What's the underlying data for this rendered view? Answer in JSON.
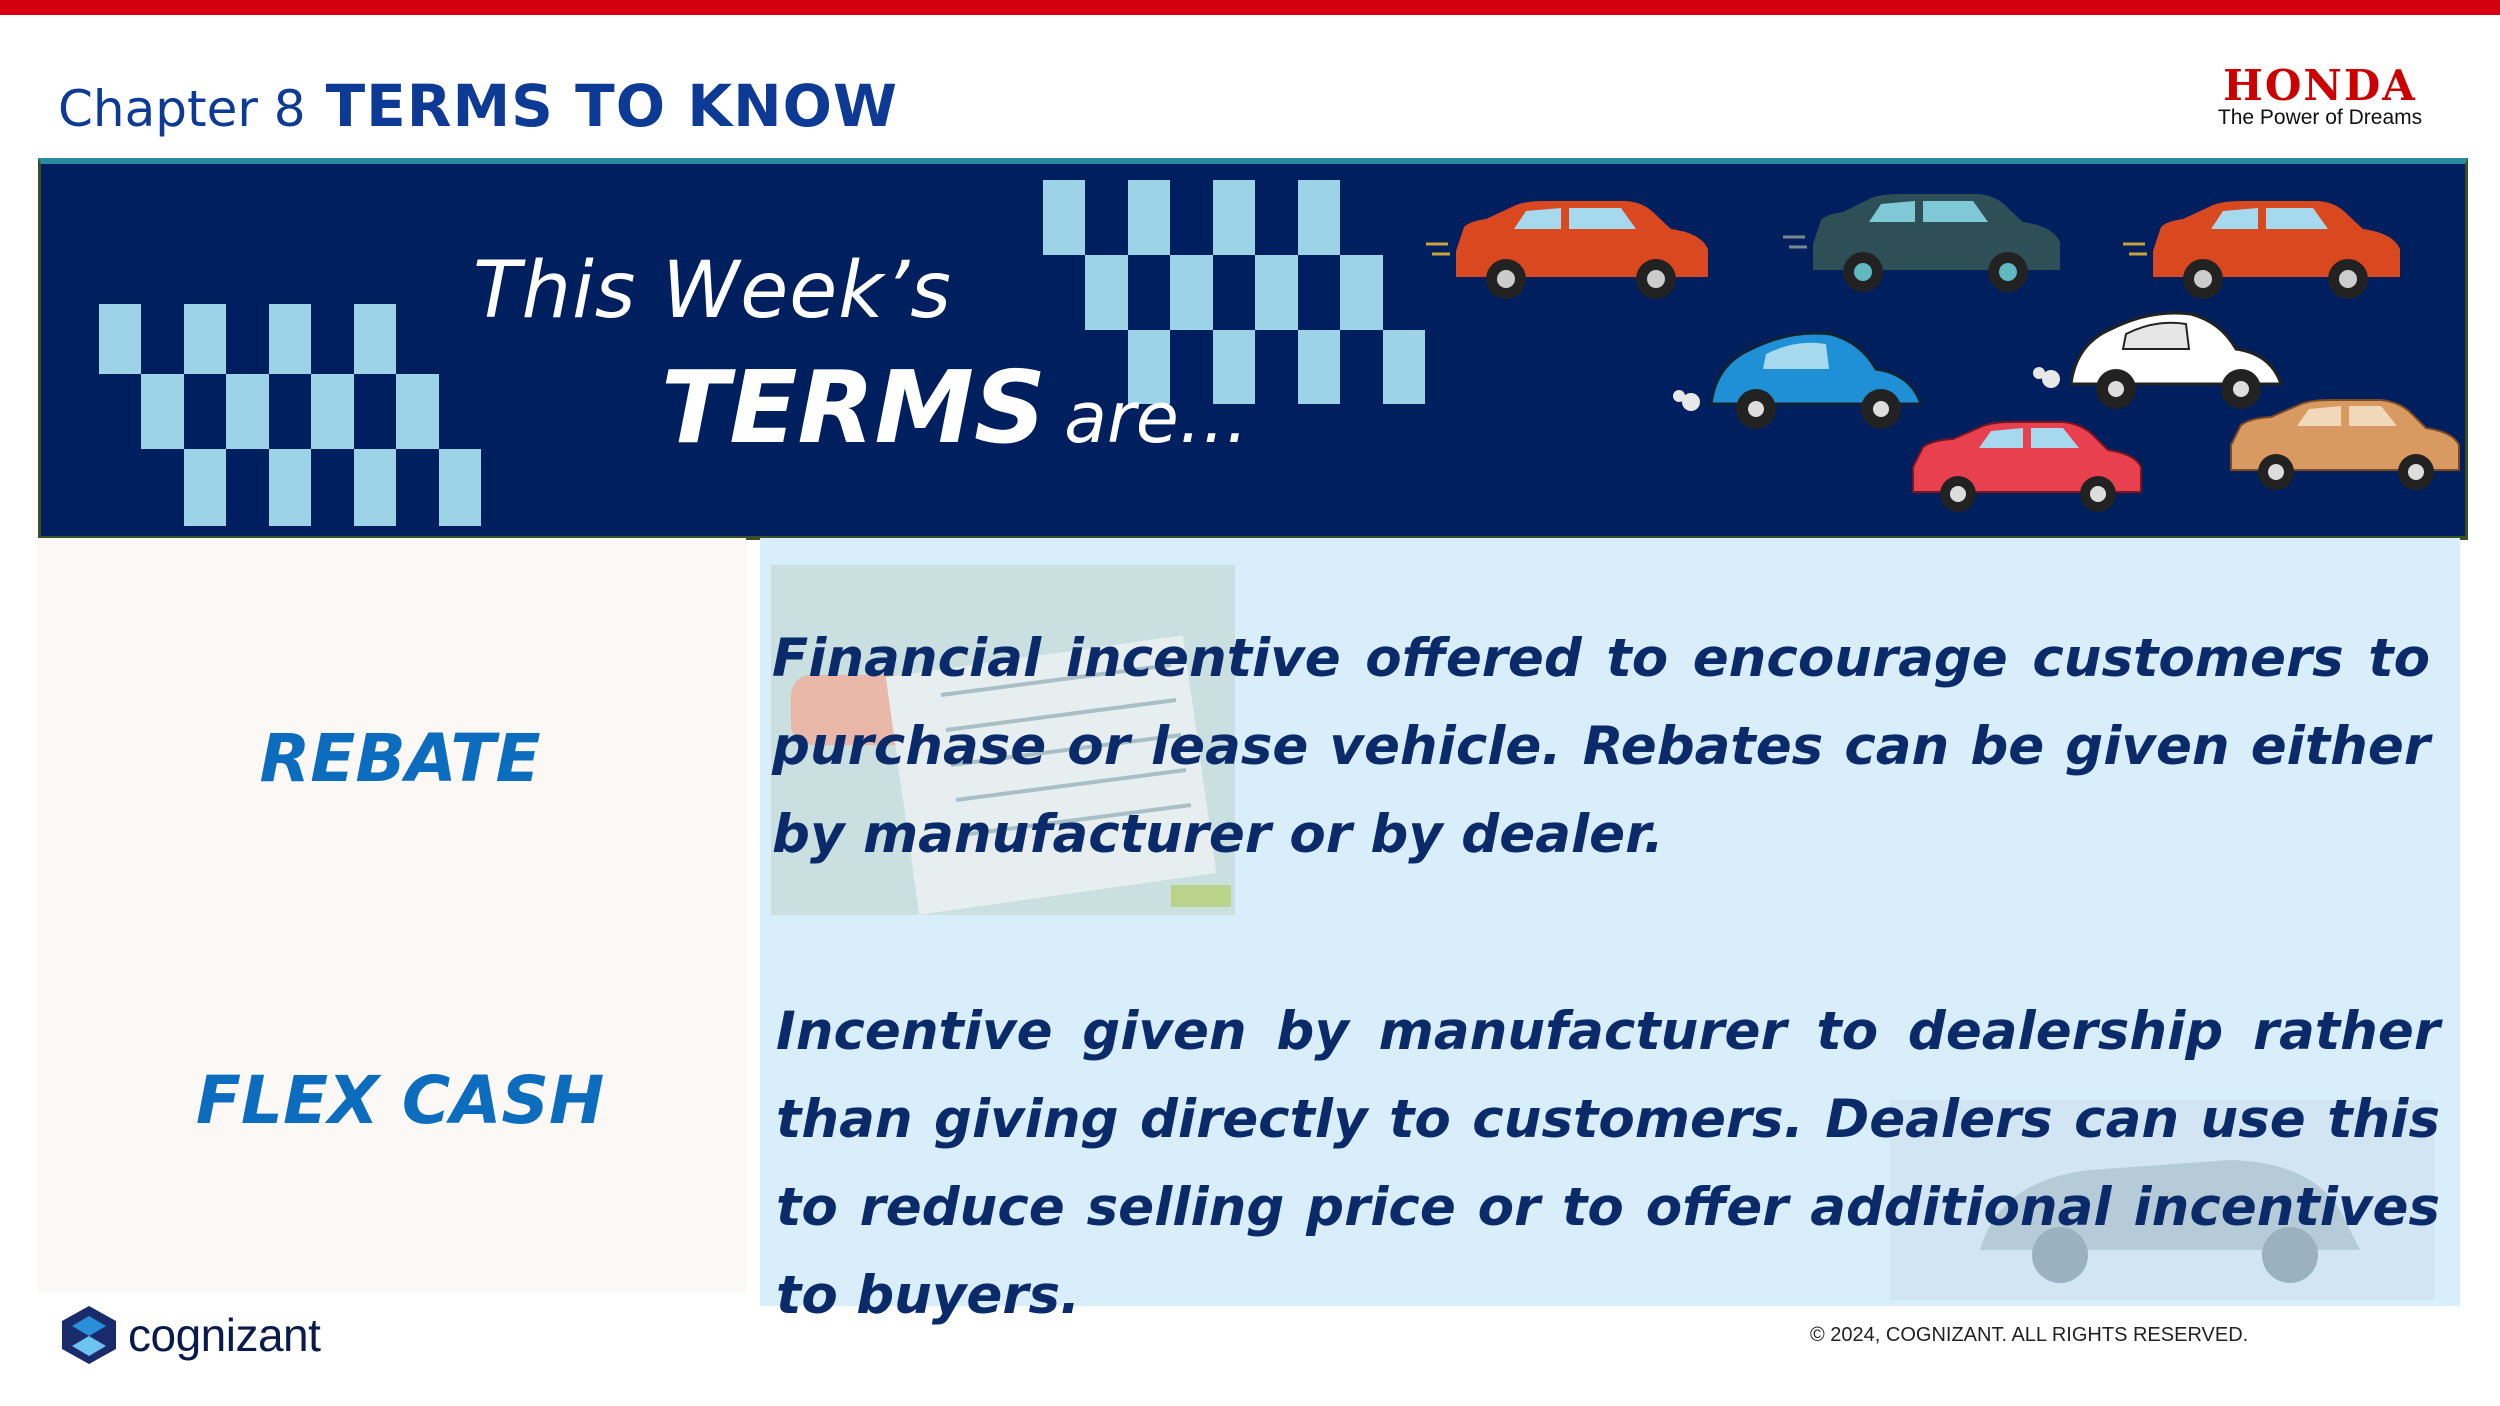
{
  "header": {
    "chapter_label": "Chapter 8",
    "title": "TERMS TO KNOW"
  },
  "brand": {
    "name": "HONDA",
    "tagline": "The Power of Dreams",
    "color": "#cc0000"
  },
  "banner": {
    "line1": "This Week’s",
    "line2_bold": "TERMS",
    "line2_rest": "are…",
    "background": "#001f5e",
    "checker_color": "#9dd3e6"
  },
  "terms": [
    {
      "term": "REBATE",
      "definition": "Financial incentive offered to encourage customers to purchase or lease vehicle. Rebates can be given either by manufacturer or by dealer."
    },
    {
      "term": "FLEX CASH",
      "definition": "Incentive given by manufacturer to dealership rather than giving directly to customers. Dealers can use this to reduce selling price or to offer additional incentives to buyers."
    }
  ],
  "footer": {
    "company": "cognizant",
    "copyright": "© 2024, COGNIZANT. ALL RIGHTS RESERVED."
  },
  "colors": {
    "accent_red": "#d4000f",
    "title_blue": "#0c3a94",
    "term_blue": "#0c6dbf",
    "definition_navy": "#0a2a6a",
    "right_panel": "#d8eefa"
  }
}
